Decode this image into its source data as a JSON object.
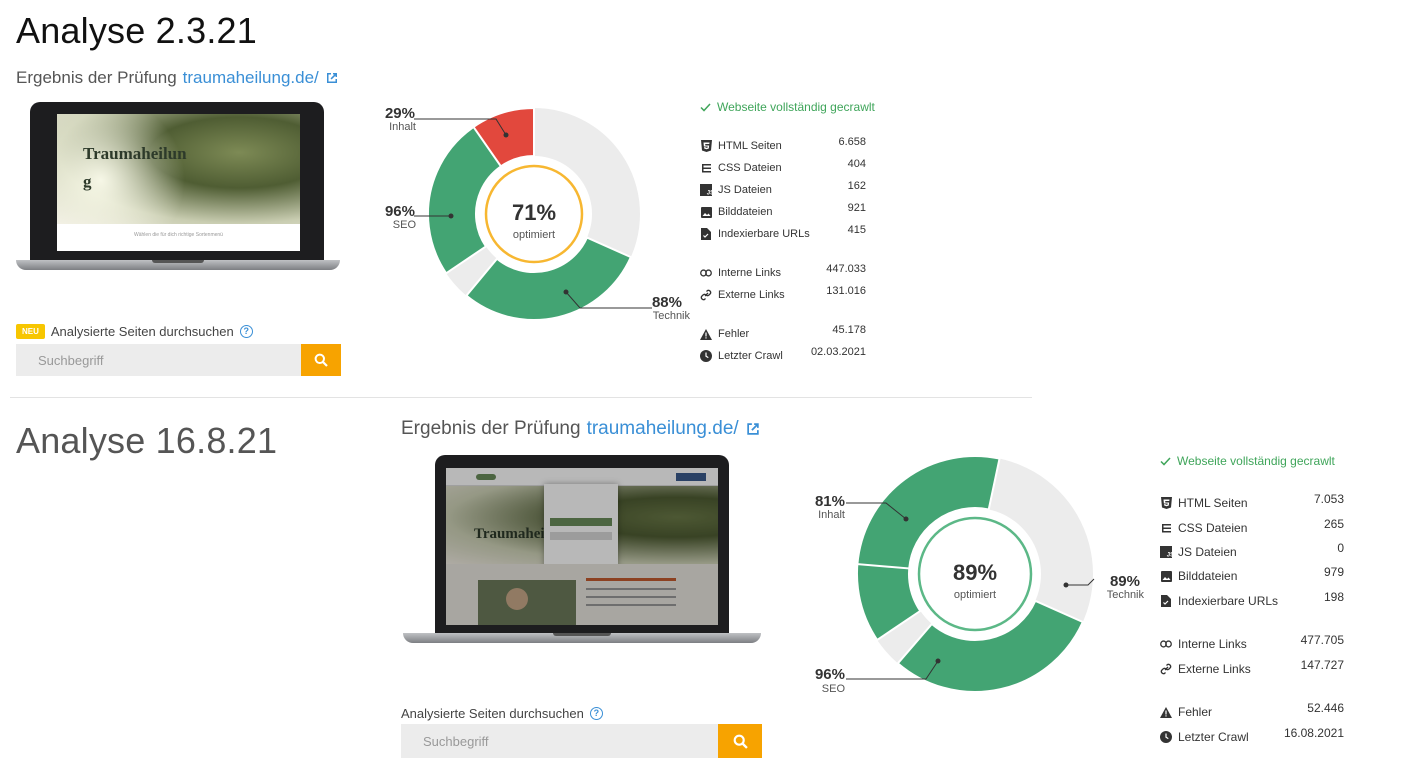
{
  "colors": {
    "green": "#43a473",
    "red": "#e2483d",
    "grey": "#ececec",
    "orange": "#f7a300",
    "link": "#3a8fd6",
    "ok": "#3fa55a"
  },
  "analysis1": {
    "title": "Analyse 2.3.21",
    "result_prefix": "Ergebnis der Prüfung",
    "domain": "traumaheilung.de/",
    "screen_heading": "Traumaheilun\ng",
    "screen_subtext": "Wählen die für dich richtige Sortenmenü",
    "donut": {
      "center_pct": "71%",
      "center_label": "optimiert",
      "ring_color": "#f7b731",
      "segments": [
        {
          "name": "Inhalt",
          "pct": "29%",
          "value": 29,
          "color": "#e2483d"
        },
        {
          "name": "Technik",
          "pct": "88%",
          "value": 88,
          "color": "#43a473"
        },
        {
          "name": "SEO",
          "pct": "96%",
          "value": 96,
          "color": "#43a473"
        }
      ]
    },
    "crawl_status": "Webseite vollständig gecrawlt",
    "stats": [
      {
        "icon": "html-icon",
        "label": "HTML Seiten",
        "value": "6.658"
      },
      {
        "icon": "css-icon",
        "label": "CSS Dateien",
        "value": "404"
      },
      {
        "icon": "js-icon",
        "label": "JS Dateien",
        "value": "162"
      },
      {
        "icon": "image-icon",
        "label": "Bilddateien",
        "value": "921"
      },
      {
        "icon": "file-icon",
        "label": "Indexierbare URLs",
        "value": "415"
      },
      {
        "icon": "link-icon",
        "label": "Interne Links",
        "value": "447.033"
      },
      {
        "icon": "external-link-icon",
        "label": "Externe Links",
        "value": "131.016"
      },
      {
        "icon": "warning-icon",
        "label": "Fehler",
        "value": "45.178"
      },
      {
        "icon": "clock-icon",
        "label": "Letzter Crawl",
        "value": "02.03.2021"
      }
    ],
    "badge": "NEU",
    "search_label": "Analysierte Seiten durchsuchen",
    "search_placeholder": "Suchbegriff"
  },
  "analysis2": {
    "title": "Analyse 16.8.21",
    "result_prefix": "Ergebnis der Prüfung",
    "domain": "traumaheilung.de/",
    "screen_heading": "Traumaheil",
    "donut": {
      "center_pct": "89%",
      "center_label": "optimiert",
      "ring_color": "#5cb887",
      "segments": [
        {
          "name": "Inhalt",
          "pct": "81%",
          "value": 81,
          "color": "#43a473"
        },
        {
          "name": "Technik",
          "pct": "89%",
          "value": 89,
          "color": "#43a473"
        },
        {
          "name": "SEO",
          "pct": "96%",
          "value": 96,
          "color": "#43a473"
        }
      ]
    },
    "crawl_status": "Webseite vollständig gecrawlt",
    "stats": [
      {
        "icon": "html-icon",
        "label": "HTML Seiten",
        "value": "7.053"
      },
      {
        "icon": "css-icon",
        "label": "CSS Dateien",
        "value": "265"
      },
      {
        "icon": "js-icon",
        "label": "JS Dateien",
        "value": "0"
      },
      {
        "icon": "image-icon",
        "label": "Bilddateien",
        "value": "979"
      },
      {
        "icon": "file-icon",
        "label": "Indexierbare URLs",
        "value": "198"
      },
      {
        "icon": "link-icon",
        "label": "Interne Links",
        "value": "477.705"
      },
      {
        "icon": "external-link-icon",
        "label": "Externe Links",
        "value": "147.727"
      },
      {
        "icon": "warning-icon",
        "label": "Fehler",
        "value": "52.446"
      },
      {
        "icon": "clock-icon",
        "label": "Letzter Crawl",
        "value": "16.08.2021"
      }
    ],
    "search_label": "Analysierte Seiten durchsuchen",
    "search_placeholder": "Suchbegriff"
  }
}
